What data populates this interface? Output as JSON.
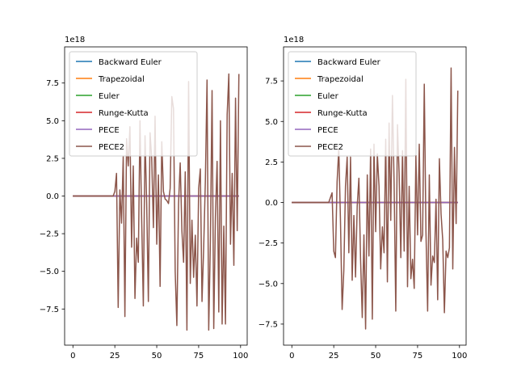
{
  "chart_data": [
    {
      "type": "line",
      "exponent_label": "1e18",
      "xlim": [
        -4.95,
        103.95
      ],
      "ylim": [
        -9.9,
        9.9
      ],
      "xticks": [
        0,
        25,
        50,
        75,
        100
      ],
      "xtick_labels": [
        "0",
        "25",
        "50",
        "75",
        "100"
      ],
      "yticks": [
        -7.5,
        -5.0,
        -2.5,
        0.0,
        2.5,
        5.0,
        7.5
      ],
      "ytick_labels": [
        "−7.5",
        "−5.0",
        "−2.5",
        "0.0",
        "2.5",
        "5.0",
        "7.5"
      ],
      "grid": false,
      "legend_position": "upper left",
      "series": [
        {
          "name": "Backward Euler",
          "color": "#1f77b4",
          "x": [
            0,
            99
          ],
          "y": [
            0,
            0
          ]
        },
        {
          "name": "Trapezoidal",
          "color": "#ff7f0e",
          "x": [
            0,
            99
          ],
          "y": [
            0,
            0
          ]
        },
        {
          "name": "Euler",
          "color": "#2ca02c",
          "x": [
            0,
            99
          ],
          "y": [
            0,
            0
          ]
        },
        {
          "name": "Runge-Kutta",
          "color": "#d62728",
          "x": [
            0,
            99
          ],
          "y": [
            0,
            0
          ]
        },
        {
          "name": "PECE",
          "color": "#9467bd",
          "x": [
            0,
            99
          ],
          "y": [
            0,
            0
          ]
        },
        {
          "name": "PECE2",
          "color": "#8c564b",
          "x": [
            0,
            5,
            10,
            15,
            20,
            24,
            25,
            26,
            27,
            28,
            29,
            30,
            31,
            32,
            33,
            34,
            35,
            36,
            37,
            38,
            39,
            40,
            41,
            42,
            43,
            44,
            45,
            46,
            47,
            48,
            49,
            50,
            51,
            52,
            53,
            54,
            55,
            56,
            57,
            58,
            59,
            60,
            61,
            62,
            63,
            64,
            65,
            66,
            67,
            68,
            69,
            70,
            71,
            72,
            73,
            74,
            75,
            76,
            77,
            78,
            79,
            80,
            81,
            82,
            83,
            84,
            85,
            86,
            87,
            88,
            89,
            90,
            91,
            92,
            93,
            94,
            95,
            96,
            97,
            98,
            99
          ],
          "y": [
            0,
            0,
            0,
            0,
            0,
            0,
            0.3,
            1.5,
            -7.4,
            0.4,
            -1.8,
            2.6,
            -8.0,
            3.8,
            2.0,
            4.6,
            -3.4,
            2.0,
            -6.8,
            -2.8,
            -4.4,
            5.0,
            -1.5,
            -7.3,
            4.0,
            -0.5,
            -7.0,
            4.2,
            2.5,
            -2.1,
            5.3,
            -3.2,
            1.4,
            -6.0,
            3.6,
            0.3,
            -0.2,
            -0.3,
            -0.5,
            0.5,
            6.6,
            5.8,
            -5.0,
            -8.6,
            -0.5,
            2.2,
            -2.3,
            -4.4,
            1.6,
            -8.9,
            7.6,
            -5.8,
            -1.6,
            -5.4,
            -2.6,
            -7.3,
            0.5,
            1.8,
            -7.0,
            -3.4,
            1.0,
            7.7,
            -8.9,
            -3.0,
            7.0,
            -8.8,
            -1.4,
            2.3,
            -7.7,
            5.0,
            -8.5,
            -2.0,
            -8.5,
            5.4,
            8.1,
            -3.2,
            1.5,
            -4.6,
            6.5,
            -2.3,
            8.1
          ]
        }
      ]
    },
    {
      "type": "line",
      "exponent_label": "1e18",
      "xlim": [
        -4.95,
        103.95
      ],
      "ylim": [
        -8.8,
        9.6
      ],
      "xticks": [
        0,
        25,
        50,
        75,
        100
      ],
      "xtick_labels": [
        "0",
        "25",
        "50",
        "75",
        "100"
      ],
      "yticks": [
        -7.5,
        -5.0,
        -2.5,
        0.0,
        2.5,
        5.0,
        7.5
      ],
      "ytick_labels": [
        "−7.5",
        "−5.0",
        "−2.5",
        "0.0",
        "2.5",
        "5.0",
        "7.5"
      ],
      "grid": false,
      "legend_position": "upper left",
      "series": [
        {
          "name": "Backward Euler",
          "color": "#1f77b4",
          "x": [
            0,
            99
          ],
          "y": [
            0,
            0
          ]
        },
        {
          "name": "Trapezoidal",
          "color": "#ff7f0e",
          "x": [
            0,
            99
          ],
          "y": [
            0,
            0
          ]
        },
        {
          "name": "Euler",
          "color": "#2ca02c",
          "x": [
            0,
            99
          ],
          "y": [
            0,
            0
          ]
        },
        {
          "name": "Runge-Kutta",
          "color": "#d62728",
          "x": [
            0,
            99
          ],
          "y": [
            0,
            0
          ]
        },
        {
          "name": "PECE",
          "color": "#9467bd",
          "x": [
            0,
            99
          ],
          "y": [
            0,
            0
          ]
        },
        {
          "name": "PECE2",
          "color": "#8c564b",
          "x": [
            0,
            5,
            10,
            15,
            20,
            22,
            23,
            24,
            25,
            26,
            27,
            28,
            29,
            30,
            31,
            32,
            33,
            34,
            35,
            36,
            37,
            38,
            39,
            40,
            41,
            42,
            43,
            44,
            45,
            46,
            47,
            48,
            49,
            50,
            51,
            52,
            53,
            54,
            55,
            56,
            57,
            58,
            59,
            60,
            61,
            62,
            63,
            64,
            65,
            66,
            67,
            68,
            69,
            70,
            71,
            72,
            73,
            74,
            75,
            76,
            77,
            78,
            79,
            80,
            81,
            82,
            83,
            84,
            85,
            86,
            87,
            88,
            89,
            90,
            91,
            92,
            93,
            94,
            95,
            96,
            97,
            98,
            99
          ],
          "y": [
            0,
            0,
            0,
            0,
            0,
            0,
            0.3,
            0.6,
            -3.0,
            -3.4,
            1.3,
            3.3,
            -1.1,
            -6.6,
            -4.2,
            1.0,
            2.8,
            -3.1,
            2.8,
            -4.8,
            -0.8,
            -4.6,
            -0.2,
            1.5,
            -3.5,
            -7.1,
            -2.0,
            -7.8,
            1.7,
            -3.3,
            3.3,
            -7.2,
            3.6,
            -1.8,
            3.0,
            1.0,
            -4.1,
            -1.5,
            -3.1,
            3.9,
            -4.9,
            4.9,
            -1.1,
            6.6,
            1.2,
            -6.7,
            4.8,
            1.8,
            -3.4,
            3.2,
            -3.0,
            7.6,
            -5.2,
            1.0,
            -4.7,
            -3.5,
            -5.3,
            2.9,
            -2.0,
            3.6,
            -2.4,
            -2.0,
            7.3,
            -1.8,
            -6.7,
            1.7,
            -5.1,
            -3.3,
            -3.7,
            0.2,
            -6.0,
            2.7,
            -0.7,
            -2.3,
            -6.8,
            -3.0,
            -3.4,
            -2.8,
            8.3,
            -4.1,
            3.4,
            -1.3,
            6.9
          ]
        }
      ]
    }
  ]
}
